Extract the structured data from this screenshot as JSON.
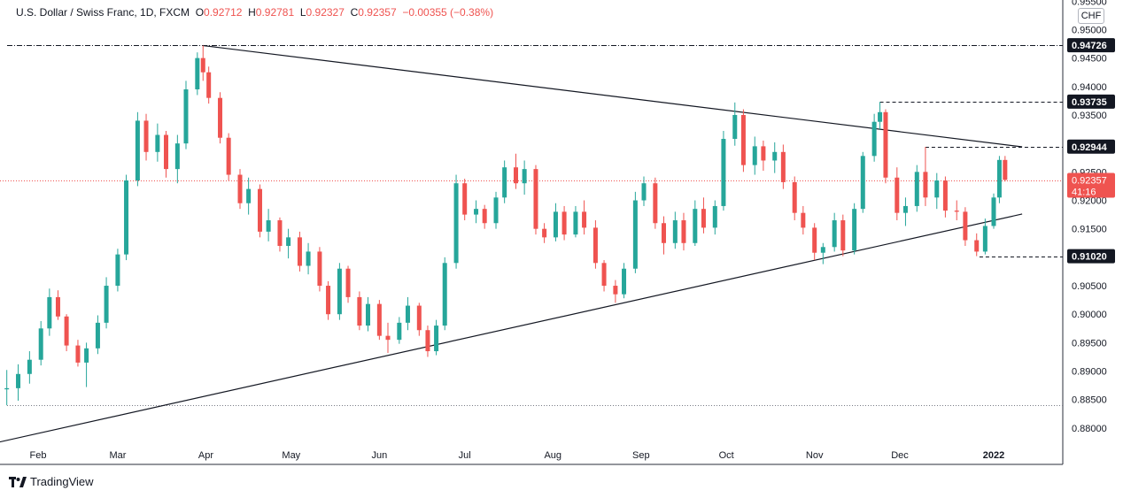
{
  "legend": {
    "symbol": "U.S. Dollar / Swiss Franc, 1D, FXCM",
    "o_key": "O",
    "o_val": "0.92712",
    "h_key": "H",
    "h_val": "0.92781",
    "l_key": "L",
    "l_val": "0.92327",
    "c_key": "C",
    "c_val": "0.92357",
    "change": "−0.00355 (−0.38%)"
  },
  "currency": "CHF",
  "brand": "TradingView",
  "colors": {
    "up": "#26a69a",
    "down": "#ef5350",
    "label_bg": "#131722",
    "price_line": "#ef5350"
  },
  "chart_data": {
    "type": "candlestick",
    "ylim": [
      0.8775,
      0.9552
    ],
    "y_ticks": [
      "0.95500",
      "0.95000",
      "0.94500",
      "0.94000",
      "0.93500",
      "0.93000",
      "0.92500",
      "0.92000",
      "0.91500",
      "0.91000",
      "0.90500",
      "0.90000",
      "0.89500",
      "0.89000",
      "0.88500",
      "0.88000"
    ],
    "x_labels": [
      {
        "label": "Feb",
        "date": "2021-02-01"
      },
      {
        "label": "Mar",
        "date": "2021-03-01"
      },
      {
        "label": "Apr",
        "date": "2021-04-01"
      },
      {
        "label": "May",
        "date": "2021-05-01"
      },
      {
        "label": "Jun",
        "date": "2021-06-01"
      },
      {
        "label": "Jul",
        "date": "2021-07-01"
      },
      {
        "label": "Aug",
        "date": "2021-08-01"
      },
      {
        "label": "Sep",
        "date": "2021-09-01"
      },
      {
        "label": "Oct",
        "date": "2021-10-01"
      },
      {
        "label": "Nov",
        "date": "2021-11-01"
      },
      {
        "label": "Dec",
        "date": "2021-12-01"
      },
      {
        "label": "2022",
        "date": "2022-01-03",
        "bold": true
      }
    ],
    "candles": [
      {
        "d": "2021-01-21",
        "o": 0.8868,
        "h": 0.8902,
        "l": 0.884,
        "c": 0.887
      },
      {
        "d": "2021-01-25",
        "o": 0.887,
        "h": 0.8912,
        "l": 0.8848,
        "c": 0.8895
      },
      {
        "d": "2021-01-29",
        "o": 0.8895,
        "h": 0.8935,
        "l": 0.8878,
        "c": 0.892
      },
      {
        "d": "2021-02-02",
        "o": 0.892,
        "h": 0.8988,
        "l": 0.891,
        "c": 0.8975
      },
      {
        "d": "2021-02-05",
        "o": 0.8975,
        "h": 0.9045,
        "l": 0.8962,
        "c": 0.903
      },
      {
        "d": "2021-02-08",
        "o": 0.903,
        "h": 0.9042,
        "l": 0.899,
        "c": 0.8996
      },
      {
        "d": "2021-02-11",
        "o": 0.8996,
        "h": 0.9,
        "l": 0.8935,
        "c": 0.8945
      },
      {
        "d": "2021-02-15",
        "o": 0.8945,
        "h": 0.8955,
        "l": 0.8908,
        "c": 0.8915
      },
      {
        "d": "2021-02-18",
        "o": 0.8915,
        "h": 0.895,
        "l": 0.8872,
        "c": 0.894
      },
      {
        "d": "2021-02-22",
        "o": 0.894,
        "h": 0.8998,
        "l": 0.893,
        "c": 0.8985
      },
      {
        "d": "2021-02-25",
        "o": 0.8985,
        "h": 0.9065,
        "l": 0.8975,
        "c": 0.905
      },
      {
        "d": "2021-03-01",
        "o": 0.905,
        "h": 0.9115,
        "l": 0.904,
        "c": 0.9105
      },
      {
        "d": "2021-03-04",
        "o": 0.9105,
        "h": 0.9245,
        "l": 0.9095,
        "c": 0.9235
      },
      {
        "d": "2021-03-08",
        "o": 0.9235,
        "h": 0.9355,
        "l": 0.9225,
        "c": 0.934
      },
      {
        "d": "2021-03-11",
        "o": 0.934,
        "h": 0.9352,
        "l": 0.927,
        "c": 0.9285
      },
      {
        "d": "2021-03-15",
        "o": 0.9285,
        "h": 0.9335,
        "l": 0.9268,
        "c": 0.9315
      },
      {
        "d": "2021-03-18",
        "o": 0.9315,
        "h": 0.9322,
        "l": 0.924,
        "c": 0.9255
      },
      {
        "d": "2021-03-22",
        "o": 0.9255,
        "h": 0.9315,
        "l": 0.923,
        "c": 0.93
      },
      {
        "d": "2021-03-25",
        "o": 0.93,
        "h": 0.941,
        "l": 0.929,
        "c": 0.9395
      },
      {
        "d": "2021-03-29",
        "o": 0.9395,
        "h": 0.946,
        "l": 0.9385,
        "c": 0.945
      },
      {
        "d": "2021-03-31",
        "o": 0.945,
        "h": 0.9472,
        "l": 0.941,
        "c": 0.9425
      },
      {
        "d": "2021-04-02",
        "o": 0.9425,
        "h": 0.9435,
        "l": 0.937,
        "c": 0.938
      },
      {
        "d": "2021-04-06",
        "o": 0.938,
        "h": 0.939,
        "l": 0.93,
        "c": 0.931
      },
      {
        "d": "2021-04-09",
        "o": 0.931,
        "h": 0.9318,
        "l": 0.9235,
        "c": 0.9245
      },
      {
        "d": "2021-04-13",
        "o": 0.9245,
        "h": 0.9255,
        "l": 0.9185,
        "c": 0.9195
      },
      {
        "d": "2021-04-16",
        "o": 0.9195,
        "h": 0.924,
        "l": 0.9175,
        "c": 0.922
      },
      {
        "d": "2021-04-20",
        "o": 0.922,
        "h": 0.9228,
        "l": 0.9135,
        "c": 0.9145
      },
      {
        "d": "2021-04-23",
        "o": 0.9145,
        "h": 0.9185,
        "l": 0.9128,
        "c": 0.9165
      },
      {
        "d": "2021-04-27",
        "o": 0.9165,
        "h": 0.917,
        "l": 0.911,
        "c": 0.912
      },
      {
        "d": "2021-04-30",
        "o": 0.912,
        "h": 0.915,
        "l": 0.9098,
        "c": 0.9135
      },
      {
        "d": "2021-05-04",
        "o": 0.9135,
        "h": 0.9145,
        "l": 0.9075,
        "c": 0.9085
      },
      {
        "d": "2021-05-07",
        "o": 0.9085,
        "h": 0.9125,
        "l": 0.907,
        "c": 0.911
      },
      {
        "d": "2021-05-11",
        "o": 0.911,
        "h": 0.9118,
        "l": 0.904,
        "c": 0.905
      },
      {
        "d": "2021-05-14",
        "o": 0.905,
        "h": 0.9058,
        "l": 0.899,
        "c": 0.9
      },
      {
        "d": "2021-05-18",
        "o": 0.9,
        "h": 0.909,
        "l": 0.899,
        "c": 0.908
      },
      {
        "d": "2021-05-21",
        "o": 0.908,
        "h": 0.9085,
        "l": 0.902,
        "c": 0.903
      },
      {
        "d": "2021-05-25",
        "o": 0.903,
        "h": 0.904,
        "l": 0.8972,
        "c": 0.898
      },
      {
        "d": "2021-05-28",
        "o": 0.898,
        "h": 0.903,
        "l": 0.897,
        "c": 0.9018
      },
      {
        "d": "2021-06-01",
        "o": 0.9018,
        "h": 0.9025,
        "l": 0.8955,
        "c": 0.8962
      },
      {
        "d": "2021-06-04",
        "o": 0.8962,
        "h": 0.8985,
        "l": 0.8932,
        "c": 0.8955
      },
      {
        "d": "2021-06-08",
        "o": 0.8955,
        "h": 0.8995,
        "l": 0.8948,
        "c": 0.8985
      },
      {
        "d": "2021-06-11",
        "o": 0.8985,
        "h": 0.903,
        "l": 0.8972,
        "c": 0.9015
      },
      {
        "d": "2021-06-15",
        "o": 0.9015,
        "h": 0.902,
        "l": 0.8962,
        "c": 0.8972
      },
      {
        "d": "2021-06-18",
        "o": 0.8972,
        "h": 0.898,
        "l": 0.8925,
        "c": 0.8935
      },
      {
        "d": "2021-06-21",
        "o": 0.8935,
        "h": 0.899,
        "l": 0.8928,
        "c": 0.898
      },
      {
        "d": "2021-06-24",
        "o": 0.898,
        "h": 0.91,
        "l": 0.8972,
        "c": 0.909
      },
      {
        "d": "2021-06-28",
        "o": 0.909,
        "h": 0.9245,
        "l": 0.908,
        "c": 0.923
      },
      {
        "d": "2021-07-01",
        "o": 0.923,
        "h": 0.9238,
        "l": 0.9165,
        "c": 0.9175
      },
      {
        "d": "2021-07-05",
        "o": 0.9175,
        "h": 0.92,
        "l": 0.916,
        "c": 0.9185
      },
      {
        "d": "2021-07-08",
        "o": 0.9185,
        "h": 0.9192,
        "l": 0.915,
        "c": 0.916
      },
      {
        "d": "2021-07-12",
        "o": 0.916,
        "h": 0.9215,
        "l": 0.915,
        "c": 0.9205
      },
      {
        "d": "2021-07-15",
        "o": 0.9205,
        "h": 0.927,
        "l": 0.9195,
        "c": 0.9258
      },
      {
        "d": "2021-07-19",
        "o": 0.9258,
        "h": 0.9282,
        "l": 0.922,
        "c": 0.923
      },
      {
        "d": "2021-07-22",
        "o": 0.923,
        "h": 0.927,
        "l": 0.921,
        "c": 0.9255
      },
      {
        "d": "2021-07-26",
        "o": 0.9255,
        "h": 0.9262,
        "l": 0.914,
        "c": 0.915
      },
      {
        "d": "2021-07-29",
        "o": 0.915,
        "h": 0.916,
        "l": 0.9125,
        "c": 0.9135
      },
      {
        "d": "2021-08-02",
        "o": 0.9135,
        "h": 0.9195,
        "l": 0.9128,
        "c": 0.918
      },
      {
        "d": "2021-08-05",
        "o": 0.918,
        "h": 0.919,
        "l": 0.913,
        "c": 0.914
      },
      {
        "d": "2021-08-09",
        "o": 0.914,
        "h": 0.919,
        "l": 0.9135,
        "c": 0.918
      },
      {
        "d": "2021-08-12",
        "o": 0.918,
        "h": 0.92,
        "l": 0.914,
        "c": 0.9152
      },
      {
        "d": "2021-08-16",
        "o": 0.9152,
        "h": 0.9165,
        "l": 0.908,
        "c": 0.909
      },
      {
        "d": "2021-08-19",
        "o": 0.909,
        "h": 0.9095,
        "l": 0.904,
        "c": 0.905
      },
      {
        "d": "2021-08-23",
        "o": 0.905,
        "h": 0.906,
        "l": 0.902,
        "c": 0.9035
      },
      {
        "d": "2021-08-26",
        "o": 0.9035,
        "h": 0.909,
        "l": 0.9028,
        "c": 0.908
      },
      {
        "d": "2021-08-30",
        "o": 0.908,
        "h": 0.9215,
        "l": 0.9072,
        "c": 0.92
      },
      {
        "d": "2021-09-02",
        "o": 0.92,
        "h": 0.9242,
        "l": 0.919,
        "c": 0.923
      },
      {
        "d": "2021-09-06",
        "o": 0.923,
        "h": 0.924,
        "l": 0.915,
        "c": 0.916
      },
      {
        "d": "2021-09-09",
        "o": 0.916,
        "h": 0.9172,
        "l": 0.9105,
        "c": 0.9125
      },
      {
        "d": "2021-09-13",
        "o": 0.9125,
        "h": 0.918,
        "l": 0.9115,
        "c": 0.9165
      },
      {
        "d": "2021-09-16",
        "o": 0.9165,
        "h": 0.9178,
        "l": 0.9112,
        "c": 0.9125
      },
      {
        "d": "2021-09-20",
        "o": 0.9125,
        "h": 0.92,
        "l": 0.912,
        "c": 0.9185
      },
      {
        "d": "2021-09-23",
        "o": 0.9185,
        "h": 0.9205,
        "l": 0.9142,
        "c": 0.9152
      },
      {
        "d": "2021-09-27",
        "o": 0.9152,
        "h": 0.92,
        "l": 0.914,
        "c": 0.919
      },
      {
        "d": "2021-09-30",
        "o": 0.919,
        "h": 0.9322,
        "l": 0.9182,
        "c": 0.9308
      },
      {
        "d": "2021-10-04",
        "o": 0.9308,
        "h": 0.9372,
        "l": 0.9296,
        "c": 0.935
      },
      {
        "d": "2021-10-07",
        "o": 0.935,
        "h": 0.936,
        "l": 0.925,
        "c": 0.9262
      },
      {
        "d": "2021-10-11",
        "o": 0.9262,
        "h": 0.9312,
        "l": 0.9245,
        "c": 0.9295
      },
      {
        "d": "2021-10-14",
        "o": 0.9295,
        "h": 0.9305,
        "l": 0.9252,
        "c": 0.927
      },
      {
        "d": "2021-10-18",
        "o": 0.927,
        "h": 0.9302,
        "l": 0.9248,
        "c": 0.9285
      },
      {
        "d": "2021-10-21",
        "o": 0.9285,
        "h": 0.9298,
        "l": 0.922,
        "c": 0.9232
      },
      {
        "d": "2021-10-25",
        "o": 0.9232,
        "h": 0.9242,
        "l": 0.9165,
        "c": 0.9178
      },
      {
        "d": "2021-10-28",
        "o": 0.9178,
        "h": 0.919,
        "l": 0.914,
        "c": 0.9152
      },
      {
        "d": "2021-11-01",
        "o": 0.9152,
        "h": 0.916,
        "l": 0.9095,
        "c": 0.9108
      },
      {
        "d": "2021-11-04",
        "o": 0.9108,
        "h": 0.9125,
        "l": 0.9088,
        "c": 0.9118
      },
      {
        "d": "2021-11-08",
        "o": 0.9118,
        "h": 0.9178,
        "l": 0.911,
        "c": 0.9165
      },
      {
        "d": "2021-11-11",
        "o": 0.9165,
        "h": 0.9175,
        "l": 0.9102,
        "c": 0.9112
      },
      {
        "d": "2021-11-15",
        "o": 0.9112,
        "h": 0.9195,
        "l": 0.9105,
        "c": 0.9185
      },
      {
        "d": "2021-11-18",
        "o": 0.9185,
        "h": 0.9285,
        "l": 0.9178,
        "c": 0.9278
      },
      {
        "d": "2021-11-22",
        "o": 0.9278,
        "h": 0.9352,
        "l": 0.9268,
        "c": 0.9338
      },
      {
        "d": "2021-11-24",
        "o": 0.9338,
        "h": 0.9373,
        "l": 0.9325,
        "c": 0.9355
      },
      {
        "d": "2021-11-26",
        "o": 0.9355,
        "h": 0.936,
        "l": 0.923,
        "c": 0.924
      },
      {
        "d": "2021-11-30",
        "o": 0.924,
        "h": 0.9258,
        "l": 0.9165,
        "c": 0.9178
      },
      {
        "d": "2021-12-03",
        "o": 0.9178,
        "h": 0.9205,
        "l": 0.9155,
        "c": 0.919
      },
      {
        "d": "2021-12-07",
        "o": 0.919,
        "h": 0.9262,
        "l": 0.918,
        "c": 0.925
      },
      {
        "d": "2021-12-10",
        "o": 0.925,
        "h": 0.9294,
        "l": 0.919,
        "c": 0.9205
      },
      {
        "d": "2021-12-14",
        "o": 0.9205,
        "h": 0.9248,
        "l": 0.9185,
        "c": 0.9235
      },
      {
        "d": "2021-12-17",
        "o": 0.9235,
        "h": 0.9242,
        "l": 0.917,
        "c": 0.9182
      },
      {
        "d": "2021-12-21",
        "o": 0.9182,
        "h": 0.92,
        "l": 0.9165,
        "c": 0.918
      },
      {
        "d": "2021-12-24",
        "o": 0.918,
        "h": 0.9188,
        "l": 0.912,
        "c": 0.913
      },
      {
        "d": "2021-12-28",
        "o": 0.913,
        "h": 0.9142,
        "l": 0.9102,
        "c": 0.911
      },
      {
        "d": "2021-12-31",
        "o": 0.911,
        "h": 0.9168,
        "l": 0.9105,
        "c": 0.9155
      },
      {
        "d": "2022-01-03",
        "o": 0.9155,
        "h": 0.9212,
        "l": 0.915,
        "c": 0.9205
      },
      {
        "d": "2022-01-05",
        "o": 0.9205,
        "h": 0.9278,
        "l": 0.9195,
        "c": 0.9271
      },
      {
        "d": "2022-01-07",
        "o": 0.9271,
        "h": 0.9278,
        "l": 0.9233,
        "c": 0.9236
      }
    ],
    "trendlines": [
      {
        "name": "upper",
        "from": {
          "d": "2021-03-31",
          "y": 0.9472
        },
        "to": {
          "d": "2022-01-13",
          "y": 0.9294
        }
      },
      {
        "name": "lower",
        "from": {
          "d": "2021-01-18",
          "y": 0.8775
        },
        "to": {
          "d": "2022-01-13",
          "y": 0.9176
        }
      }
    ],
    "level_lines": [
      {
        "label": "0.94726",
        "y": 0.94726,
        "style": "dashdot",
        "from": "2021-01-18"
      },
      {
        "label": "0.93735",
        "y": 0.93735,
        "style": "dashed",
        "from": "2021-11-24"
      },
      {
        "label": "0.92944",
        "y": 0.92944,
        "style": "dashed",
        "from": "2021-12-10"
      },
      {
        "label": "0.91020",
        "y": 0.9102,
        "style": "dashed",
        "from": "2021-12-29"
      },
      {
        "label": "",
        "y": 0.884,
        "style": "dotted",
        "from": "2021-01-18"
      }
    ],
    "current_price": {
      "label": "0.92357",
      "y": 0.92357,
      "countdown": "41:16"
    }
  }
}
